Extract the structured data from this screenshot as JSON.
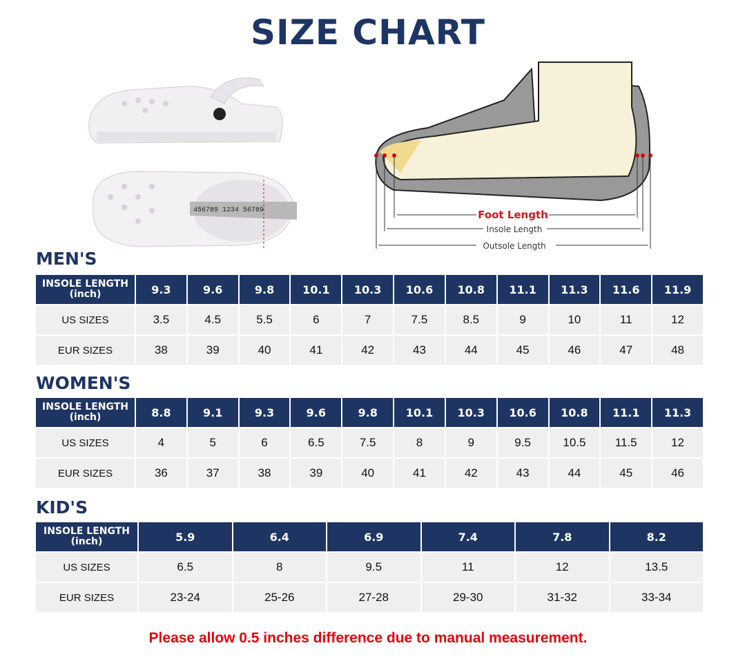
{
  "title": "SIZE CHART",
  "diagram": {
    "foot_length": "Foot Length",
    "insole_length": "Insole Length",
    "outsole_length": "Outsole Length",
    "tape_numbers": "456789 1234 56789"
  },
  "men": {
    "heading": "MEN'S",
    "header_label": "INSOLE LENGTH",
    "header_unit": "(inch)",
    "us_label": "US SIZES",
    "eur_label": "EUR SIZES",
    "insole": [
      "9.3",
      "9.6",
      "9.8",
      "10.1",
      "10.3",
      "10.6",
      "10.8",
      "11.1",
      "11.3",
      "11.6",
      "11.9"
    ],
    "us": [
      "3.5",
      "4.5",
      "5.5",
      "6",
      "7",
      "7.5",
      "8.5",
      "9",
      "10",
      "11",
      "12"
    ],
    "eur": [
      "38",
      "39",
      "40",
      "41",
      "42",
      "43",
      "44",
      "45",
      "46",
      "47",
      "48"
    ]
  },
  "women": {
    "heading": "WOMEN'S",
    "header_label": "INSOLE LENGTH",
    "header_unit": "(inch)",
    "us_label": "US SIZES",
    "eur_label": "EUR SIZES",
    "insole": [
      "8.8",
      "9.1",
      "9.3",
      "9.6",
      "9.8",
      "10.1",
      "10.3",
      "10.6",
      "10.8",
      "11.1",
      "11.3"
    ],
    "us": [
      "4",
      "5",
      "6",
      "6.5",
      "7.5",
      "8",
      "9",
      "9.5",
      "10.5",
      "11.5",
      "12"
    ],
    "eur": [
      "36",
      "37",
      "38",
      "39",
      "40",
      "41",
      "42",
      "43",
      "44",
      "45",
      "46"
    ]
  },
  "kids": {
    "heading": "KID'S",
    "header_label": "INSOLE LENGTH",
    "header_unit": "(inch)",
    "us_label": "US SIZES",
    "eur_label": "EUR SIZES",
    "insole": [
      "5.9",
      "6.4",
      "6.9",
      "7.4",
      "7.8",
      "8.2"
    ],
    "us": [
      "6.5",
      "8",
      "9.5",
      "11",
      "12",
      "13.5"
    ],
    "eur": [
      "23-24",
      "25-26",
      "27-28",
      "29-30",
      "31-32",
      "33-34"
    ]
  },
  "note": "Please allow 0.5 inches difference due to manual measurement.",
  "colors": {
    "navy": "#1e3564",
    "row_gray": "#efefef",
    "note_red": "#e8000b"
  }
}
